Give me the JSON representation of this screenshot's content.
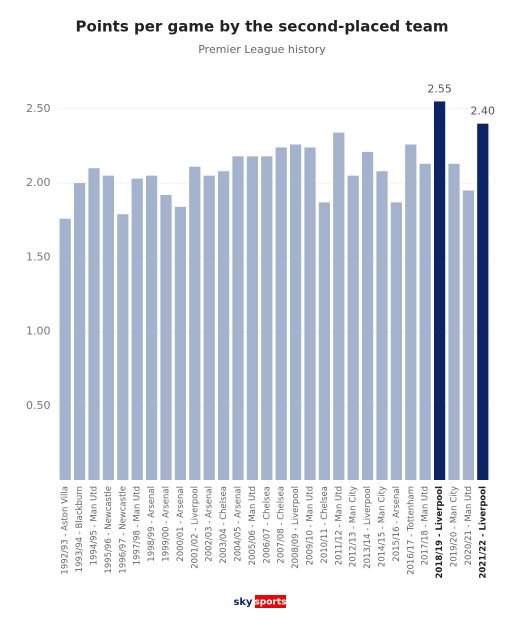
{
  "chart_data": {
    "type": "bar",
    "title": "Points per game by the second-placed team",
    "subtitle": "Premier League history",
    "categories": [
      "1992/93 - Aston Villa",
      "1993/94 - Blackburn",
      "1994/95 - Man Utd",
      "1995/96 - Newcastle",
      "1996/97 - Newcastle",
      "1997/98 - Man Utd",
      "1998/99 - Arsenal",
      "1999/00 - Arsenal",
      "2000/01 - Arsenal",
      "2001/02 - Liverpool",
      "2002/03 - Arsenal",
      "2003/04 - Chelsea",
      "2004/05 - Arsenal",
      "2005/06 - Man Utd",
      "2006/07 - Chelsea",
      "2007/08 - Chelsea",
      "2008/09 - Liverpool",
      "2009/10 - Man Utd",
      "2010/11 - Chelsea",
      "2011/12 - Man Utd",
      "2012/13 - Man City",
      "2013/14 - Liverpool",
      "2014/15 - Man City",
      "2015/16 - Arsenal",
      "2016/17 - Tottenham",
      "2017/18 - Man Utd",
      "2018/19 - Liverpool",
      "2019/20 - Man City",
      "2020/21 - Man Utd",
      "2021/22 - Liverpool"
    ],
    "values": [
      1.76,
      2.0,
      2.1,
      2.05,
      1.79,
      2.03,
      2.05,
      1.92,
      1.84,
      2.11,
      2.05,
      2.08,
      2.18,
      2.18,
      2.18,
      2.24,
      2.26,
      2.24,
      1.87,
      2.34,
      2.05,
      2.21,
      2.08,
      1.87,
      2.26,
      2.13,
      2.55,
      2.13,
      1.95,
      2.4
    ],
    "value_labels": [
      null,
      null,
      null,
      null,
      null,
      null,
      null,
      null,
      null,
      null,
      null,
      null,
      null,
      null,
      null,
      null,
      null,
      null,
      null,
      null,
      null,
      null,
      null,
      null,
      null,
      null,
      "2.55",
      null,
      null,
      "2.40"
    ],
    "color": "#a4b3cd",
    "highlight_color": "#0c2366",
    "ylim": [
      0,
      2.6
    ],
    "yticks": [
      {
        "value": 0.5,
        "label": "0.50"
      },
      {
        "value": 1,
        "label": "1.00"
      },
      {
        "value": 1.5,
        "label": "1.50"
      },
      {
        "value": 2,
        "label": "2.00"
      },
      {
        "value": 2.5,
        "label": "2.50"
      }
    ],
    "grid": true
  },
  "logo": {
    "sky": "sky",
    "sports": "sports"
  }
}
